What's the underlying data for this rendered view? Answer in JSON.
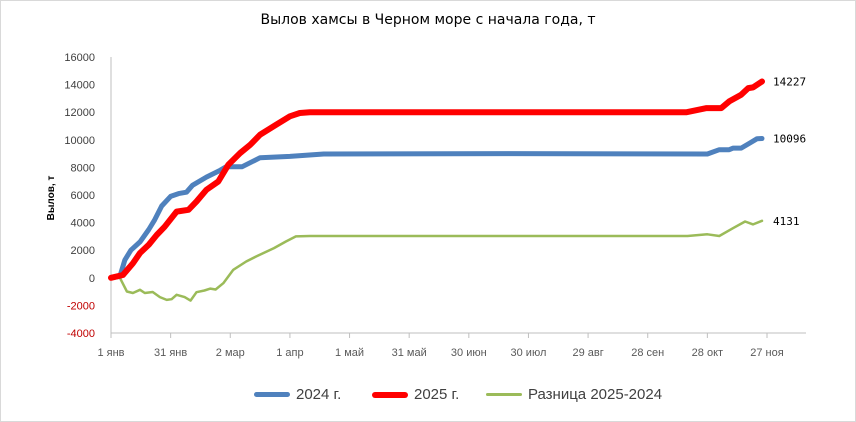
{
  "chart_data": {
    "type": "line",
    "title": "Вылов хамсы в Черном море с начала года, т",
    "xlabel": "",
    "ylabel": "Вылов, т",
    "x_unit": "day of year (1 янв = 0)",
    "xlim": [
      0,
      350
    ],
    "ylim": [
      -4000,
      16000
    ],
    "grid": false,
    "legend_position": "bottom",
    "y_ticks": [
      16000,
      14000,
      12000,
      10000,
      8000,
      6000,
      4000,
      2000,
      0,
      -2000,
      -4000
    ],
    "y_tick_labels": [
      "16000",
      "14000",
      "12000",
      "10000",
      "8000",
      "6000",
      "4000",
      "2000",
      "0",
      "-2000",
      "-4000"
    ],
    "negative_tick_color": "#c00000",
    "x_ticks": [
      0,
      30,
      60,
      90,
      120,
      150,
      180,
      210,
      240,
      270,
      300,
      330
    ],
    "x_tick_labels": [
      "1 янв",
      "31 янв",
      "2 мар",
      "1 апр",
      "1 май",
      "31 май",
      "30 июн",
      "30 июл",
      "29 авг",
      "28 сен",
      "28 окт",
      "27 ноя"
    ],
    "series": [
      {
        "name": "2024 г.",
        "color": "#4f81bd",
        "end_label": "10096",
        "x": [
          0,
          4.5,
          7,
          10,
          14.6,
          19,
          22,
          25.5,
          30,
          34,
          38,
          41,
          48,
          55,
          58,
          66,
          75,
          90,
          107,
          200,
          300,
          306,
          311,
          313,
          317,
          321.4,
          325,
          327.5
        ],
        "y": [
          0,
          100,
          1300,
          2000,
          2600,
          3500,
          4200,
          5200,
          5900,
          6100,
          6200,
          6700,
          7300,
          7800,
          8050,
          8050,
          8700,
          8800,
          8970,
          9000,
          8970,
          9280,
          9280,
          9400,
          9400,
          9770,
          10080,
          10096
        ]
      },
      {
        "name": "2025 г.",
        "color": "#ff0000",
        "end_label": "14227",
        "x": [
          0,
          6,
          11,
          14.6,
          19,
          23,
          27,
          33,
          39,
          43,
          48,
          54,
          59,
          65,
          70,
          75,
          83,
          90,
          95,
          100,
          289.6,
          299.6,
          307,
          311,
          317,
          320.6,
          323,
          327.5
        ],
        "y": [
          0,
          200,
          1050,
          1800,
          2400,
          3100,
          3700,
          4800,
          4930,
          5530,
          6380,
          6980,
          8190,
          9040,
          9640,
          10370,
          11090,
          11700,
          11940,
          12000,
          12000,
          12300,
          12300,
          12780,
          13270,
          13750,
          13800,
          14227
        ]
      },
      {
        "name": "Разница 2025-2024",
        "color": "#9bbb59",
        "end_label": "4131",
        "x": [
          0,
          4.5,
          8,
          11,
          14.6,
          17,
          21,
          24.6,
          28,
          30.5,
          33,
          37,
          40,
          43,
          47,
          50,
          52.6,
          56.5,
          61.5,
          68,
          73,
          76.6,
          82,
          88,
          93,
          100,
          290,
          300,
          306,
          313,
          319,
          323,
          327.5
        ],
        "y": [
          0,
          0,
          -990,
          -1100,
          -870,
          -1100,
          -1030,
          -1400,
          -1600,
          -1550,
          -1230,
          -1400,
          -1650,
          -1040,
          -920,
          -780,
          -850,
          -390,
          580,
          1180,
          1540,
          1790,
          2150,
          2630,
          3000,
          3030,
          3030,
          3150,
          3030,
          3600,
          4080,
          3870,
          4131
        ]
      }
    ]
  }
}
